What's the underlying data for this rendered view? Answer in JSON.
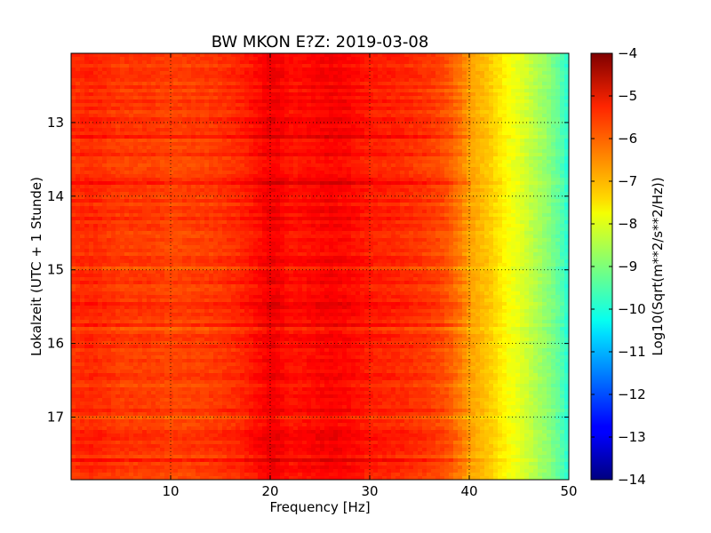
{
  "chart_data": {
    "type": "heatmap",
    "title": "BW MKON E?Z: 2019-03-08",
    "xlabel": "Frequency [Hz]",
    "ylabel": "Lokalzeit (UTC + 1 Stunde)",
    "xlim": [
      0,
      50
    ],
    "ylim": [
      12.06,
      17.85
    ],
    "y_inverted": true,
    "x_ticks": [
      "10",
      "20",
      "30",
      "40",
      "50"
    ],
    "x_tick_values": [
      10,
      20,
      30,
      40,
      50
    ],
    "y_ticks": [
      "13",
      "14",
      "15",
      "16",
      "17"
    ],
    "y_tick_values": [
      13,
      14,
      15,
      16,
      17
    ],
    "grid": true,
    "colormap": "jet",
    "colorbar": {
      "label": "Log10(Sqrt(m**2/s**2/Hz))",
      "min": -14,
      "max": -4,
      "ticks": [
        "−4",
        "−5",
        "−6",
        "−7",
        "−8",
        "−9",
        "−10",
        "−11",
        "−12",
        "−13",
        "−14"
      ],
      "tick_values": [
        -4,
        -5,
        -6,
        -7,
        -8,
        -9,
        -10,
        -11,
        -12,
        -13,
        -14
      ]
    },
    "spectrum_profile": {
      "frequency_hz": [
        0,
        2,
        5,
        8,
        10,
        14,
        17,
        19,
        20,
        21,
        22,
        24,
        26,
        28,
        30,
        33,
        36,
        37,
        38,
        39,
        40,
        41,
        42,
        43,
        44,
        45,
        46,
        47,
        48,
        49,
        50
      ],
      "level_log10": [
        -5.7,
        -5.6,
        -5.8,
        -5.8,
        -5.9,
        -5.8,
        -5.6,
        -5.3,
        -5.1,
        -5.2,
        -5.4,
        -5.3,
        -5.2,
        -5.3,
        -5.5,
        -5.6,
        -5.8,
        -5.9,
        -6.1,
        -6.4,
        -6.8,
        -7.0,
        -7.2,
        -7.5,
        -7.8,
        -8.0,
        -8.3,
        -8.6,
        -8.9,
        -9.3,
        -9.9
      ]
    }
  }
}
